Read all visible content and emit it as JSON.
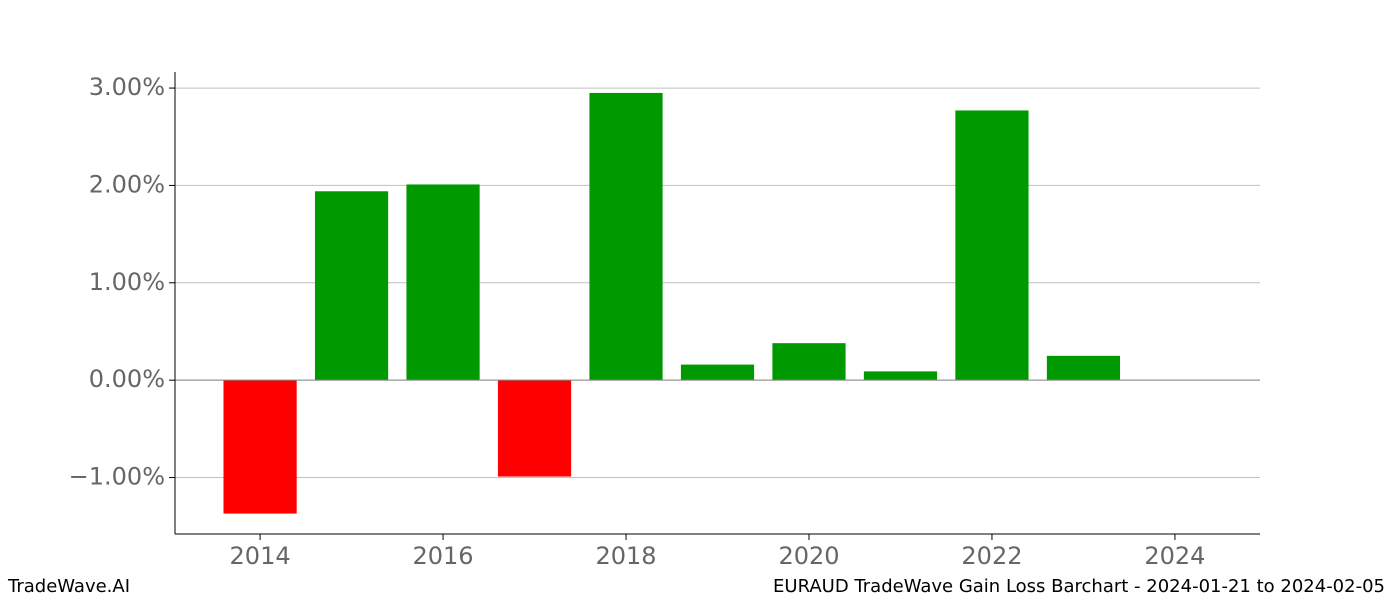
{
  "chart_data": {
    "type": "bar",
    "x": [
      2014,
      2015,
      2016,
      2017,
      2018,
      2019,
      2020,
      2021,
      2022,
      2023
    ],
    "values": [
      -1.37,
      1.94,
      2.01,
      -0.99,
      2.95,
      0.16,
      0.38,
      0.09,
      2.77,
      0.25
    ],
    "positive_color": "#009900",
    "negative_color": "#ff0000",
    "xlim": [
      2013.07,
      2024.93
    ],
    "xticks": [
      2014,
      2016,
      2018,
      2020,
      2022,
      2024
    ],
    "ylim": [
      -1.58,
      3.165
    ],
    "yticks": [
      {
        "value": -1,
        "label": "−1.00%"
      },
      {
        "value": 0,
        "label": "0.00%"
      },
      {
        "value": 1,
        "label": "1.00%"
      },
      {
        "value": 2,
        "label": "2.00%"
      },
      {
        "value": 3,
        "label": "3.00%"
      }
    ],
    "grid": true,
    "footer_left": "TradeWave.AI",
    "footer_right": "EURAUD TradeWave Gain Loss Barchart - 2024-01-21 to 2024-02-05"
  }
}
